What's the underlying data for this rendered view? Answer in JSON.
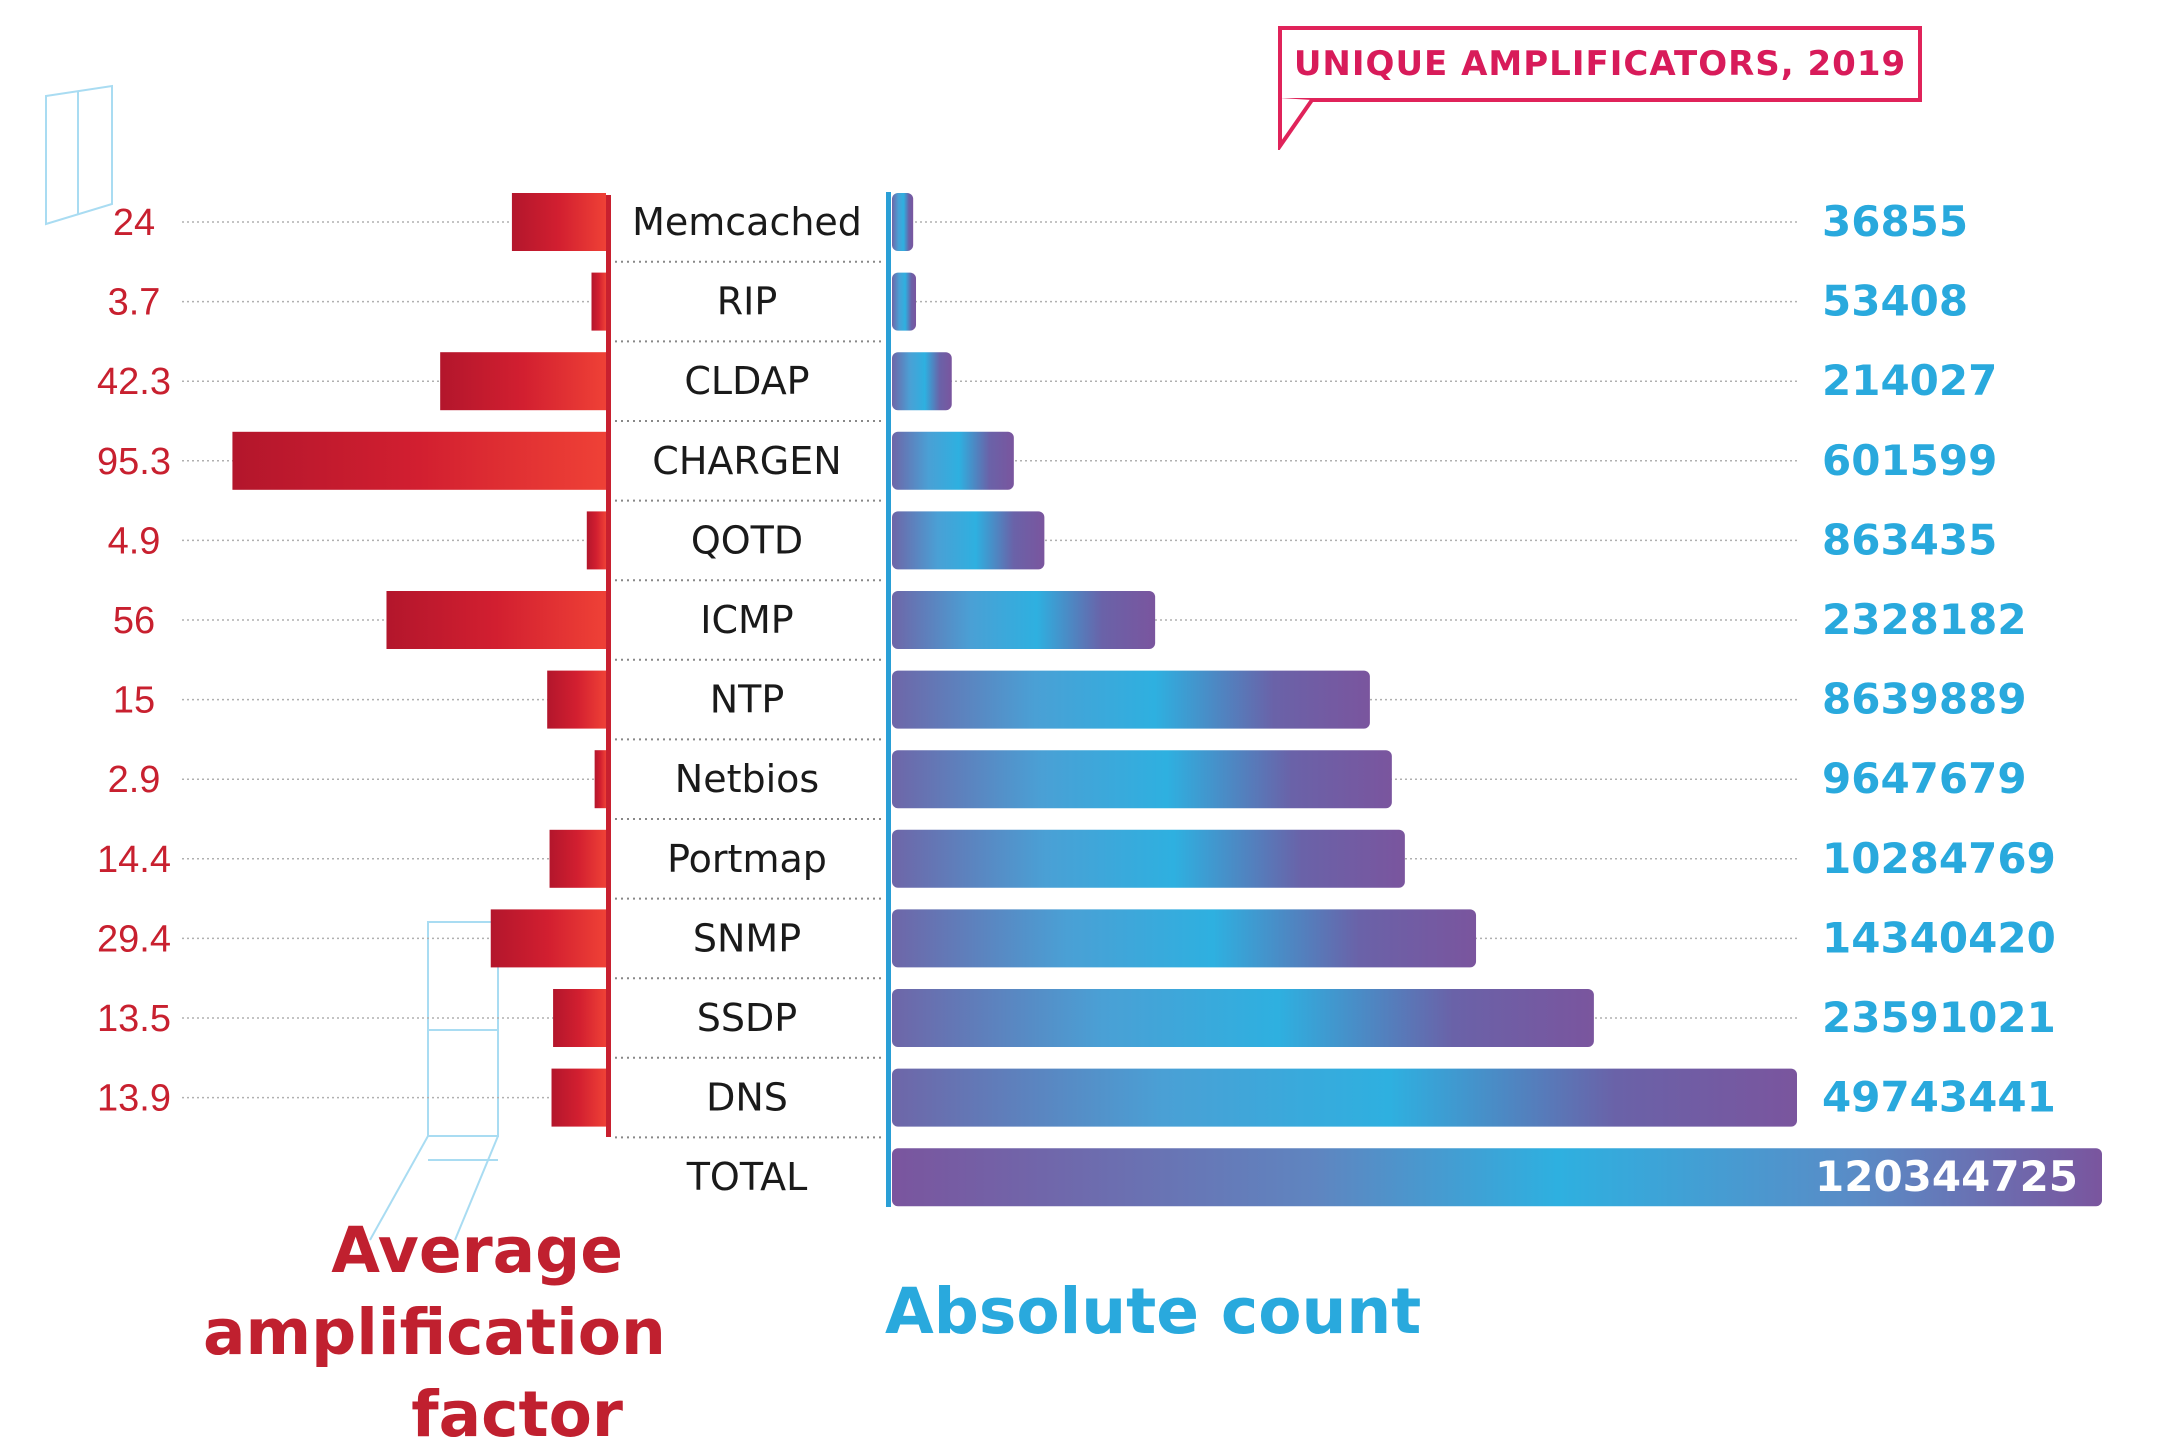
{
  "chart_data": {
    "type": "bar",
    "title": "UNIQUE AMPLIFICATORS, 2019",
    "categories": [
      "Memcached",
      "RIP",
      "CLDAP",
      "CHARGEN",
      "QOTD",
      "ICMP",
      "NTP",
      "Netbios",
      "Portmap",
      "SNMP",
      "SSDP",
      "DNS",
      "TOTAL"
    ],
    "series": [
      {
        "name": "Average amplification factor",
        "values": [
          24,
          3.7,
          42.3,
          95.3,
          4.9,
          56,
          15,
          2.9,
          14.4,
          29.4,
          13.5,
          13.9,
          null
        ],
        "labels": [
          "24",
          "3.7",
          "42.3",
          "95.3",
          "4.9",
          "56",
          "15",
          "2.9",
          "14.4",
          "29.4",
          "13.5",
          "13.9",
          ""
        ]
      },
      {
        "name": "Absolute count",
        "values": [
          36855,
          53408,
          214027,
          601599,
          863435,
          2328182,
          8639889,
          9647679,
          10284769,
          14340420,
          23591021,
          49743441,
          120344725
        ],
        "labels": [
          "36855",
          "53408",
          "214027",
          "601599",
          "863435",
          "2328182",
          "8639889",
          "9647679",
          "10284769",
          "14340420",
          "23591021",
          "49743441",
          "120344725"
        ]
      }
    ],
    "left_label": "Average amplification factor",
    "right_label": "Absolute count",
    "colors": {
      "red": "#c8202f",
      "blue": "#29a9dd",
      "purple": "#7a559e",
      "pink": "#e0235a"
    }
  }
}
